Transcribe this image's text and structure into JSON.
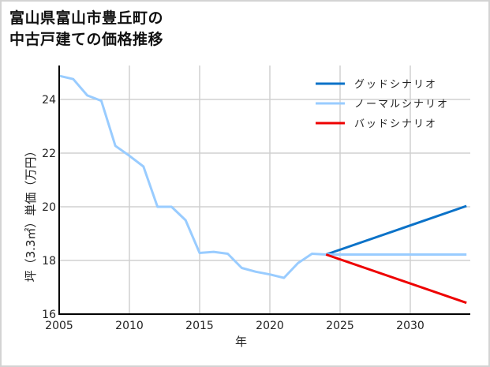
{
  "title_line1": "富山県富山市豊丘町の",
  "title_line2": "中古戸建ての価格推移",
  "chart_data": {
    "type": "line",
    "title": "富山県富山市豊丘町の中古戸建ての価格推移",
    "xlabel": "年",
    "ylabel": "坪（3.3㎡）単価（万円）",
    "xlim": [
      2005,
      2034
    ],
    "ylim": [
      16,
      25
    ],
    "xticks": [
      2005,
      2010,
      2015,
      2020,
      2025,
      2030
    ],
    "yticks": [
      16,
      18,
      20,
      22,
      24
    ],
    "grid": true,
    "legend_position": "upper right",
    "series": [
      {
        "name": "グッドシナリオ",
        "color": "#0b72c8",
        "x": [
          2024,
          2034
        ],
        "values": [
          18.22,
          20.03
        ]
      },
      {
        "name": "ノーマルシナリオ",
        "color": "#99ccff",
        "x": [
          2005,
          2006,
          2007,
          2008,
          2009,
          2010,
          2011,
          2012,
          2013,
          2014,
          2015,
          2016,
          2017,
          2018,
          2019,
          2020,
          2021,
          2022,
          2023,
          2024,
          2034
        ],
        "values": [
          24.88,
          24.76,
          24.15,
          23.95,
          22.27,
          21.9,
          21.5,
          20.0,
          20.0,
          19.5,
          18.28,
          18.32,
          18.25,
          17.72,
          17.58,
          17.48,
          17.35,
          17.9,
          18.25,
          18.22,
          18.22
        ]
      },
      {
        "name": "バッドシナリオ",
        "color": "#ee0000",
        "x": [
          2024,
          2034
        ],
        "values": [
          18.22,
          16.42
        ]
      }
    ]
  }
}
